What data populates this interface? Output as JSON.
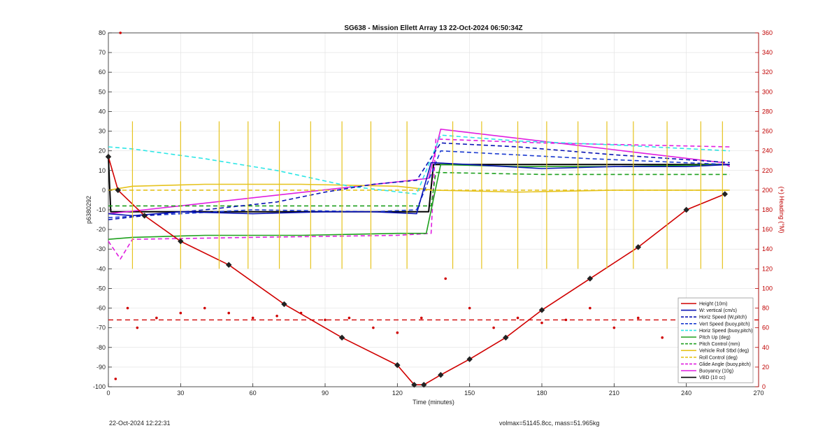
{
  "chart_data": {
    "type": "line",
    "title": "SG638 - Mission Ellett Array 13 22-Oct-2024 06:50:34Z",
    "xlabel": "Time (minutes)",
    "ylabel": "p6380292",
    "y2label": "(+) Heading (°M)",
    "xlim": [
      0,
      270
    ],
    "ylim": [
      -100,
      80
    ],
    "y2lim": [
      0,
      360
    ],
    "xticks": [
      0,
      30,
      60,
      90,
      120,
      150,
      180,
      210,
      240,
      270
    ],
    "yticks": [
      -100,
      -90,
      -80,
      -70,
      -60,
      -50,
      -40,
      -30,
      -20,
      -10,
      0,
      10,
      20,
      30,
      40,
      50,
      60,
      70,
      80
    ],
    "y2ticks": [
      0,
      20,
      40,
      60,
      80,
      100,
      120,
      140,
      160,
      180,
      200,
      220,
      240,
      260,
      280,
      300,
      320,
      340,
      360
    ],
    "grid": true,
    "legend_position": "bottom-right",
    "series": [
      {
        "name": "Height (10m)",
        "color": "#d00000",
        "style": "solid",
        "x": [
          0,
          4,
          15,
          30,
          50,
          73,
          97,
          120,
          127,
          131,
          138,
          150,
          165,
          180,
          200,
          220,
          240,
          256
        ],
        "y": [
          17,
          0,
          -13,
          -26,
          -38,
          -58,
          -75,
          -89,
          -99,
          -99,
          -94,
          -86,
          -75,
          -61,
          -45,
          -29,
          -10,
          -2
        ]
      },
      {
        "name": "W: vertical (cm/s)",
        "color": "#0a14b4",
        "style": "solid",
        "x": [
          0,
          10,
          30,
          60,
          90,
          110,
          128,
          134,
          150,
          180,
          210,
          240,
          258
        ],
        "y": [
          -12,
          -13,
          -11,
          -12,
          -11,
          -11,
          -12,
          14,
          13,
          11,
          12,
          12,
          13
        ]
      },
      {
        "name": "Horiz Speed (W,pitch)",
        "color": "#0a14b4",
        "style": "dashed",
        "x": [
          0,
          15,
          40,
          70,
          90,
          110,
          128,
          138,
          170,
          210,
          258
        ],
        "y": [
          -15,
          -13,
          -10,
          -6,
          -1,
          3,
          5,
          24,
          22,
          18,
          14
        ]
      },
      {
        "name": "Vert Speed (buoy,pitch)",
        "color": "#1a3ad0",
        "style": "dashed",
        "x": [
          0,
          15,
          60,
          110,
          128,
          138,
          200,
          258
        ],
        "y": [
          -14,
          -13,
          -10,
          -11,
          -10,
          20,
          16,
          13
        ]
      },
      {
        "name": "Horiz Speed (buoy,pitch)",
        "color": "#2ee6e6",
        "style": "dashed",
        "x": [
          0,
          10,
          40,
          70,
          100,
          128,
          138,
          170,
          210,
          258
        ],
        "y": [
          22,
          21,
          16,
          10,
          2,
          -2,
          28,
          25,
          23,
          20
        ]
      },
      {
        "name": "Pitch Up (deg)",
        "color": "#1ea01e",
        "style": "solid",
        "x": [
          0,
          10,
          40,
          80,
          120,
          132,
          138,
          170,
          210,
          258
        ],
        "y": [
          -25,
          -24,
          -23,
          -23,
          -22,
          -22,
          13,
          12,
          12,
          13
        ]
      },
      {
        "name": "Pitch Control (mm)",
        "color": "#1ea01e",
        "style": "dashed",
        "x": [
          0,
          15,
          60,
          120,
          134,
          136,
          180,
          258
        ],
        "y": [
          -8,
          -8,
          -8,
          -8,
          -8,
          9,
          8,
          8
        ]
      },
      {
        "name": "Vehicle Roll Stbd (deg)",
        "color": "#e6c31e",
        "style": "solid",
        "x": [
          0,
          10,
          40,
          80,
          120,
          135,
          170,
          210,
          258
        ],
        "y": [
          0,
          2,
          3,
          3,
          2,
          0,
          -1,
          0,
          0
        ]
      },
      {
        "name": "Roll Control (deg)",
        "color": "#e6c31e",
        "style": "dashed",
        "x": [
          0,
          60,
          120,
          135,
          200,
          258
        ],
        "y": [
          0,
          0,
          0,
          0,
          0,
          0
        ]
      },
      {
        "name": "Glide Angle (buoy,pitch)",
        "color": "#e01ee0",
        "style": "dashed",
        "x": [
          0,
          5,
          10,
          60,
          120,
          134,
          136,
          180,
          258
        ],
        "y": [
          -26,
          -35,
          -25,
          -24,
          -23,
          -22,
          26,
          24,
          22
        ]
      },
      {
        "name": "Buoyancy (10g)",
        "color": "#e01ee0",
        "style": "solid",
        "x": [
          0,
          15,
          133,
          138,
          255,
          258
        ],
        "y": [
          -12,
          -10,
          6,
          31,
          14,
          12
        ]
      },
      {
        "name": "VBD (10 cc)",
        "color": "#000000",
        "style": "solid",
        "x": [
          0,
          1,
          40,
          80,
          133,
          135,
          180,
          220,
          258
        ],
        "y": [
          17,
          -11,
          -11,
          -11,
          -11,
          13,
          13,
          13,
          13
        ]
      }
    ],
    "heading": {
      "color": "#d00000",
      "mean": 68,
      "x": [
        3,
        5,
        8,
        12,
        20,
        30,
        40,
        50,
        60,
        70,
        80,
        90,
        100,
        110,
        120,
        130,
        140,
        150,
        160,
        170,
        180,
        190,
        200,
        210,
        220,
        230,
        240,
        250,
        258
      ],
      "y": [
        8,
        360,
        80,
        60,
        70,
        75,
        80,
        75,
        70,
        72,
        75,
        68,
        70,
        60,
        55,
        70,
        110,
        80,
        60,
        70,
        65,
        68,
        80,
        60,
        70,
        50,
        55,
        75,
        50
      ]
    },
    "vehicle_roll_markers": [
      10,
      30,
      46,
      58,
      71,
      84,
      97,
      109,
      124,
      143,
      155,
      170,
      182,
      195,
      207,
      218,
      232,
      246,
      255
    ]
  },
  "footer": {
    "timestamp": "22-Oct-2024 12:22:31",
    "vol_mass": "volmax=51145.8cc, mass=51.965kg"
  }
}
